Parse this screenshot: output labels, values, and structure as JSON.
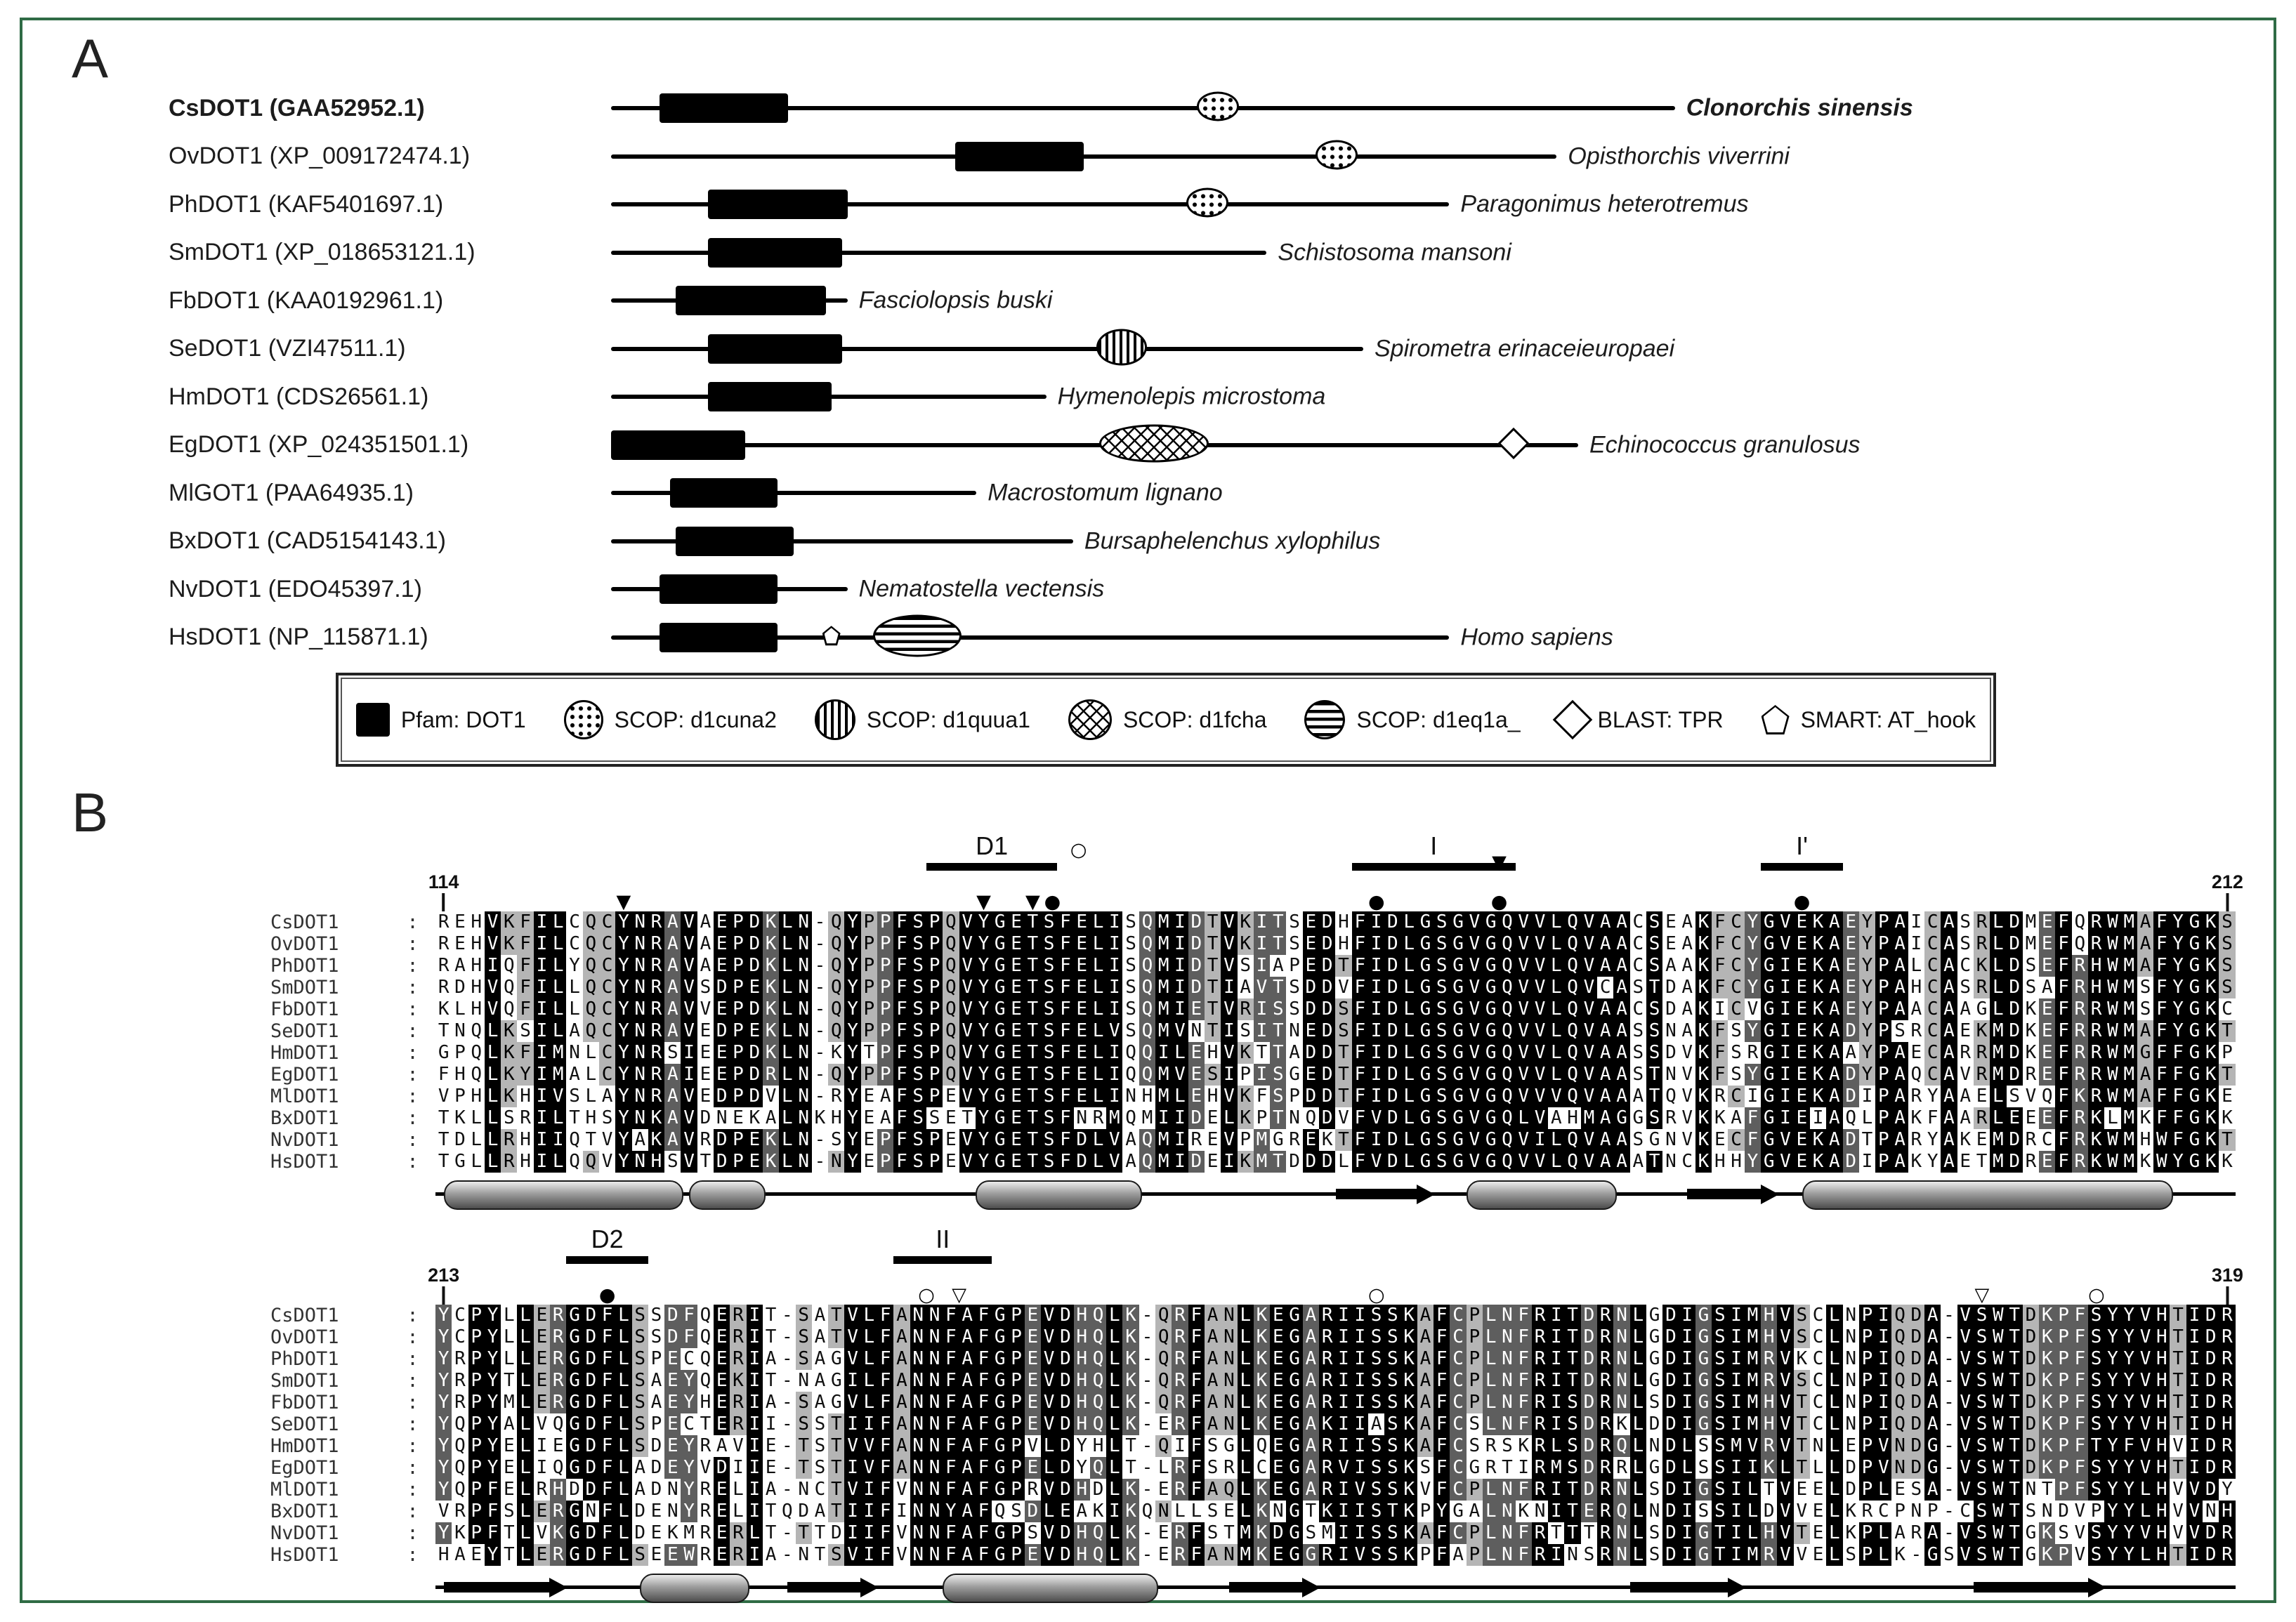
{
  "panel_a": {
    "panel_letter": "A",
    "rows": [
      {
        "label": "CsDOT1 (GAA52952.1)",
        "bold": true,
        "line_pct": 99,
        "species": "Clonorchis sinensis",
        "species_bold": true,
        "domains": [
          {
            "type": "pfam",
            "from": 4.5,
            "to": 16.5
          },
          {
            "type": "d1cuna2",
            "at": 56.5
          }
        ]
      },
      {
        "label": "OvDOT1 (XP_009172474.1)",
        "line_pct": 88,
        "species": "Opisthorchis viverrini",
        "domains": [
          {
            "type": "pfam",
            "from": 32,
            "to": 44
          },
          {
            "type": "d1cuna2",
            "at": 67.5
          }
        ]
      },
      {
        "label": "PhDOT1 (KAF5401697.1)",
        "line_pct": 78,
        "species": "Paragonimus heterotremus",
        "domains": [
          {
            "type": "pfam",
            "from": 9,
            "to": 22
          },
          {
            "type": "d1cuna2",
            "at": 55.5
          }
        ]
      },
      {
        "label": "SmDOT1 (XP_018653121.1)",
        "line_pct": 61,
        "species": "Schistosoma mansoni",
        "domains": [
          {
            "type": "pfam",
            "from": 9,
            "to": 21.5
          }
        ]
      },
      {
        "label": "FbDOT1 (KAA0192961.1)",
        "line_pct": 22,
        "species": "Fasciolopsis buski",
        "domains": [
          {
            "type": "pfam",
            "from": 6,
            "to": 20
          }
        ]
      },
      {
        "label": "SeDOT1 (VZI47511.1)",
        "line_pct": 70,
        "species": "Spirometra erinaceieuropaei",
        "domains": [
          {
            "type": "pfam",
            "from": 9,
            "to": 21.5
          },
          {
            "type": "d1quua1",
            "at": 47.5
          }
        ]
      },
      {
        "label": "HmDOT1 (CDS26561.1)",
        "line_pct": 40.5,
        "species": "Hymenolepis microstoma",
        "domains": [
          {
            "type": "pfam",
            "from": 9,
            "to": 20.5
          }
        ]
      },
      {
        "label": "EgDOT1 (XP_024351501.1)",
        "line_pct": 90,
        "species": "Echinococcus granulosus",
        "domains": [
          {
            "type": "pfam",
            "from": 0,
            "to": 12.5
          },
          {
            "type": "d1fcha",
            "at": 50.5
          },
          {
            "type": "tpr",
            "at": 84
          }
        ]
      },
      {
        "label": "MlGOT1 (PAA64935.1)",
        "line_pct": 34,
        "species": "Macrostomum lignano",
        "domains": [
          {
            "type": "pfam",
            "from": 5.5,
            "to": 15.5
          }
        ]
      },
      {
        "label": "BxDOT1 (CAD5154143.1)",
        "line_pct": 43,
        "species": "Bursaphelenchus xylophilus",
        "domains": [
          {
            "type": "pfam",
            "from": 6,
            "to": 17
          }
        ]
      },
      {
        "label": "NvDOT1 (EDO45397.1)",
        "line_pct": 22,
        "species": "Nematostella vectensis",
        "domains": [
          {
            "type": "pfam",
            "from": 4.5,
            "to": 15.5
          }
        ]
      },
      {
        "label": "HsDOT1 (NP_115871.1)",
        "line_pct": 78,
        "species": "Homo sapiens",
        "domains": [
          {
            "type": "pfam",
            "from": 4.5,
            "to": 15.5
          },
          {
            "type": "at_hook",
            "at": 20.5
          },
          {
            "type": "d1eq1a",
            "at": 28.5
          }
        ]
      }
    ],
    "legend": {
      "items": [
        {
          "glyph": "pfam",
          "label": "Pfam: DOT1"
        },
        {
          "glyph": "d1cuna2",
          "label": "SCOP: d1cuna2"
        },
        {
          "glyph": "d1quua1",
          "label": "SCOP: d1quua1"
        },
        {
          "glyph": "d1fcha",
          "label": "SCOP: d1fcha"
        },
        {
          "glyph": "d1eq1a",
          "label": "SCOP: d1eq1a_"
        },
        {
          "glyph": "tpr",
          "label": "BLAST: TPR"
        },
        {
          "glyph": "at_hook",
          "label": "SMART: AT_hook"
        }
      ]
    }
  },
  "panel_b": {
    "panel_letter": "B",
    "blocks": [
      {
        "start_label": "114",
        "end_label": "212",
        "bars": [
          {
            "label": "D1",
            "from": 31,
            "to": 38
          },
          {
            "label": "I",
            "from": 57,
            "to": 66
          },
          {
            "label": "I'",
            "from": 82,
            "to": 86
          }
        ],
        "symbols": [
          {
            "col": 12,
            "glyph": "tri-down",
            "level": "low"
          },
          {
            "col": 34,
            "glyph": "tri-down",
            "level": "low"
          },
          {
            "col": 37,
            "glyph": "tri-down",
            "level": "low"
          },
          {
            "col": 38.2,
            "glyph": "dot",
            "level": "low"
          },
          {
            "col": 39.8,
            "glyph": "circle",
            "level": "high"
          },
          {
            "col": 58,
            "glyph": "dot",
            "level": "low"
          },
          {
            "col": 65.5,
            "glyph": "dot",
            "level": "low"
          },
          {
            "col": 65.5,
            "glyph": "tri-down",
            "level": "bar"
          },
          {
            "col": 84,
            "glyph": "dot",
            "level": "low"
          }
        ],
        "ss": [
          {
            "type": "helix",
            "from": 1.5,
            "to": 15
          },
          {
            "type": "helix",
            "from": 16.5,
            "to": 20
          },
          {
            "type": "helix",
            "from": 34,
            "to": 43
          },
          {
            "type": "strand",
            "from": 56,
            "to": 61
          },
          {
            "type": "helix",
            "from": 64,
            "to": 72
          },
          {
            "type": "strand",
            "from": 77.5,
            "to": 82
          },
          {
            "type": "helix",
            "from": 84.5,
            "to": 106
          }
        ],
        "rows": [
          {
            "name": "CsDOT1",
            "seq": "REHVKFILCQCYNRAVAEPDKLN-QYPPFSPQVYGETSFELISQMIDTVKITSEDHFIDLGSGVGQVVLQVAACSEAKFCYGVEKAEYPAICASRLDMEFQRWMAFYGKS"
          },
          {
            "name": "OvDOT1",
            "seq": "REHVKFILCQCYNRAVAEPDKLN-QYPPFSPQVYGETSFELISQMIDTVKITSEDHFIDLGSGVGQVVLQVAACSEAKFCYGVEKAEYPAICASRLDMEFQRWMAFYGKS"
          },
          {
            "name": "PhDOT1",
            "seq": "RAHIQFILYQCYNRAVAEPDKLN-QYPPFSPQVYGETSFELISQMIDTVSIAPEDTFIDLGSGVGQVVLQVAACSAAKFCYGIEKAEYPALCACKLDSEFRHWMAFYGKS"
          },
          {
            "name": "SmDOT1",
            "seq": "RDHVQFILLQCYNRAVSDPEKLN-QYPPFSPQVYGETSFELISQMIDTIAVTSDDVFIDLGSGVGQVVLQVCASTDAKFCYGIEKAEYPAHCASRLDSAFRHWMSFYGKS"
          },
          {
            "name": "FbDOT1",
            "seq": "KLHVQFILLQCYNRAVVEPDKLN-QYPPFSPQVYGETSFELISQMIETVRISSDDSFIDLGSGVGQVVLQVAACSDAKICVGIEKAEYPAACAAGLDKEFRRWMSFYGKC"
          },
          {
            "name": "SeDOT1",
            "seq": "TNQLKSILAQCYNRAVEDPEKLN-QYPPFSPQVYGETSFELVSQMVNTISITNEDSFIDLGSGVGQVVLQVAASSNAKFSYGIEKADYPSRCAEKMDKEFRRWMAFYGKT"
          },
          {
            "name": "HmDOT1",
            "seq": "GPQLKFIMNLCYNRSIEEPDKLN-KYTPFSPQVYGETSFELIQQILEHVKTTADDTFIDLGSGVGQVVLQVAASSDVKFSRGIEKAAYPAECARRMDKEFRRWMGFFGKP"
          },
          {
            "name": "EgDOT1",
            "seq": "FHQLKYIMALCYNRAIEEPDRLN-QYPPFSPQVYGETSFELIQQMVESIPISGEDTFIDLGSGVGQVVLQVAASTNVKFSYGIEKADYPAQCAVRMDREFRRWMAFFGKT"
          },
          {
            "name": "MlDOT1",
            "seq": "VPHLKHIVSLAYNRAVEDPDVLN-RYEAFSPEVYGETSFELINHMLEHVKFSPDDTFIDLGSGVGQVVVQVAAATQVKRCIGIEKADIPARYAAELSVQFKRWMAFFGKE"
          },
          {
            "name": "BxDOT1",
            "seq": "TKLLSRILTHSYNKAVDNEKALNKHYEAFSSETYGETSFNRMQMIIDELKPTNQDVFVDLGSGVGQLVAHMAGGSRVKKAFGIEIAQLPAKFAARLEEEFRKLMKFFGKK"
          },
          {
            "name": "NvDOT1",
            "seq": "TDLLRHIIQTVYAKAVRDPEKLN-SYEPFSPEVYGETSFDLVAQMIREVPMGREKTFIDLGSGVGQVILQVAASGNVKECFGVEKADTPARYAKEMDRCFRKWMHWFGKT"
          },
          {
            "name": "HsDOT1",
            "seq": "TGLLRHILQQVYNHSVTDPEKLN-NYEPFSPEVYGETSFDLVAQMIDEIKMTDDDLFVDLGSGVGQVVLQVAAATNCKHHYGVEKADIPAKYAETMDREFRKWMKWYGKK"
          }
        ]
      },
      {
        "start_label": "213",
        "end_label": "319",
        "bars": [
          {
            "label": "D2",
            "from": 9,
            "to": 13
          },
          {
            "label": "II",
            "from": 29,
            "to": 34
          }
        ],
        "symbols": [
          {
            "col": 11,
            "glyph": "dot",
            "level": "low"
          },
          {
            "col": 30.5,
            "glyph": "circle",
            "level": "low"
          },
          {
            "col": 32.5,
            "glyph": "tri-down-open",
            "level": "low"
          },
          {
            "col": 58,
            "glyph": "circle",
            "level": "low"
          },
          {
            "col": 95,
            "glyph": "tri-down-open",
            "level": "low"
          },
          {
            "col": 102,
            "glyph": "circle",
            "level": "low"
          }
        ],
        "ss": [
          {
            "type": "strand",
            "from": 1.5,
            "to": 8
          },
          {
            "type": "helix",
            "from": 13.5,
            "to": 19
          },
          {
            "type": "strand",
            "from": 22.5,
            "to": 27
          },
          {
            "type": "helix",
            "from": 32,
            "to": 44
          },
          {
            "type": "strand",
            "from": 49.5,
            "to": 54
          },
          {
            "type": "strand",
            "from": 74,
            "to": 80
          },
          {
            "type": "strand",
            "from": 95,
            "to": 102
          }
        ],
        "rows": [
          {
            "name": "CsDOT1",
            "seq": "YCPYLLERGDFLSSDFQERIT-SATVLFANNFAFGPEVDHQLK-QRFANLKEGARIISSKAFCPLNFRITDRNLGDIGSIMHVSCLNPIQDA-VSWTDKPFSYYVHTIDR"
          },
          {
            "name": "OvDOT1",
            "seq": "YCPYLLERGDFLSSDFQERIT-SATVLFANNFAFGPEVDHQLK-QRFANLKEGARIISSKAFCPLNFRITDRNLGDIGSIMHVSCLNPIQDA-VSWTDKPFSYYVHTIDR"
          },
          {
            "name": "PhDOT1",
            "seq": "YRPYLLERGDFLSPECQERIA-SAGVLFANNFAFGPEVDHQLK-QRFANLKEGARIISSKAFCPLNFRITDRNLGDIGSIMRVKCLNPIQDA-VSWTDKPFSYYVHTIDR"
          },
          {
            "name": "SmDOT1",
            "seq": "YRPYTLERGDFLSAEYQEKIT-NAGILFANNFAFGPEVDHQLK-QRFANLKEGARIISSKAFCPLNFRITDRNLGDIGSIMRVSCLNPIQDA-VSWTDKPFSYYVHTIDR"
          },
          {
            "name": "FbDOT1",
            "seq": "YRPYMLERGDFLSAEYHERIA-SAGVLFANNFAFGPEVDHQLK-QRFANLKEGARIISSKAFCPLNFRISDRNLSDIGSIMHVTCLNPIQDA-VSWTDKPFSYYVHTIDR"
          },
          {
            "name": "SeDOT1",
            "seq": "YQPYALVQGDFLSPECTERII-SSTIIFANNFAFGPEVDHQLK-ERFANLKEGAKIIASKAFCSLNFRISDRKLDDIGSIMHVTCLNPIQDA-VSWTDKPFSYYVHTIDH"
          },
          {
            "name": "HmDOT1",
            "seq": "YQPYELIEGDFLSDEYRAVIE-TSTVVFANNFAFGPVLDYHLT-QIFSGLQEGARIISSKAFCSRSKRLSDRQLNDLSSMVRVTNLEPVNDG-VSWTDKPFTYFVHVIDR"
          },
          {
            "name": "EgDOT1",
            "seq": "YQPYELIQGDFLADEYVDIIE-TSTIVFANNFAFGPELDYQLT-LRFSRLCEGARVISSKSFCGRTIRMSDRRLGDLSSIIKLTLLDPVNDG-VSWTDKPFSYYVHTIDR"
          },
          {
            "name": "MlDOT1",
            "seq": "YQPFELRHDDFLADNYRELIA-NCTVIFVNNFAFGPRVDHDLK-ERFAQLKEGARIVSSKVFCPLNFRITDRNLSDIGSILTVEELDPLESA-VSWTNTPFSYYLHVVDY"
          },
          {
            "name": "BxDOT1",
            "seq": "VRPFSLERGNFLDENYRELITQDATIIFINNYAFQSDLEAKIKQNLLSELKNGTKIISTKPYGALNKNITERQLNDISSILDVVELKRCPNP-CSWTSNDVPYYLHVVNH"
          },
          {
            "name": "NvDOT1",
            "seq": "YKPFTLVKGDFLDEKMRERLT-TTDIIFVNNFAFGPSVDHQLK-ERFSTMKDGSMIISSKAFCPLNFRTTTRNLSDIGTILHVTELKPLARA-VSWTGKSVSYYVHVVDR"
          },
          {
            "name": "HsDOT1",
            "seq": "HAEYTLERGDFLSEEWRERIA-NTSVIFVNNFAFGPEVDHQLK-ERFANMKEGGRIVSSKPFAPLNFRINSRNLSDIGTIMRVVELSPLK-GSVSWTGKPVSYYLHTIDR"
          }
        ]
      }
    ]
  },
  "colors": {
    "frame": "#2f6b45",
    "conserved": "#000000",
    "similar_dark": "#5e5e5e",
    "similar_mid": "#b5b5b5"
  }
}
